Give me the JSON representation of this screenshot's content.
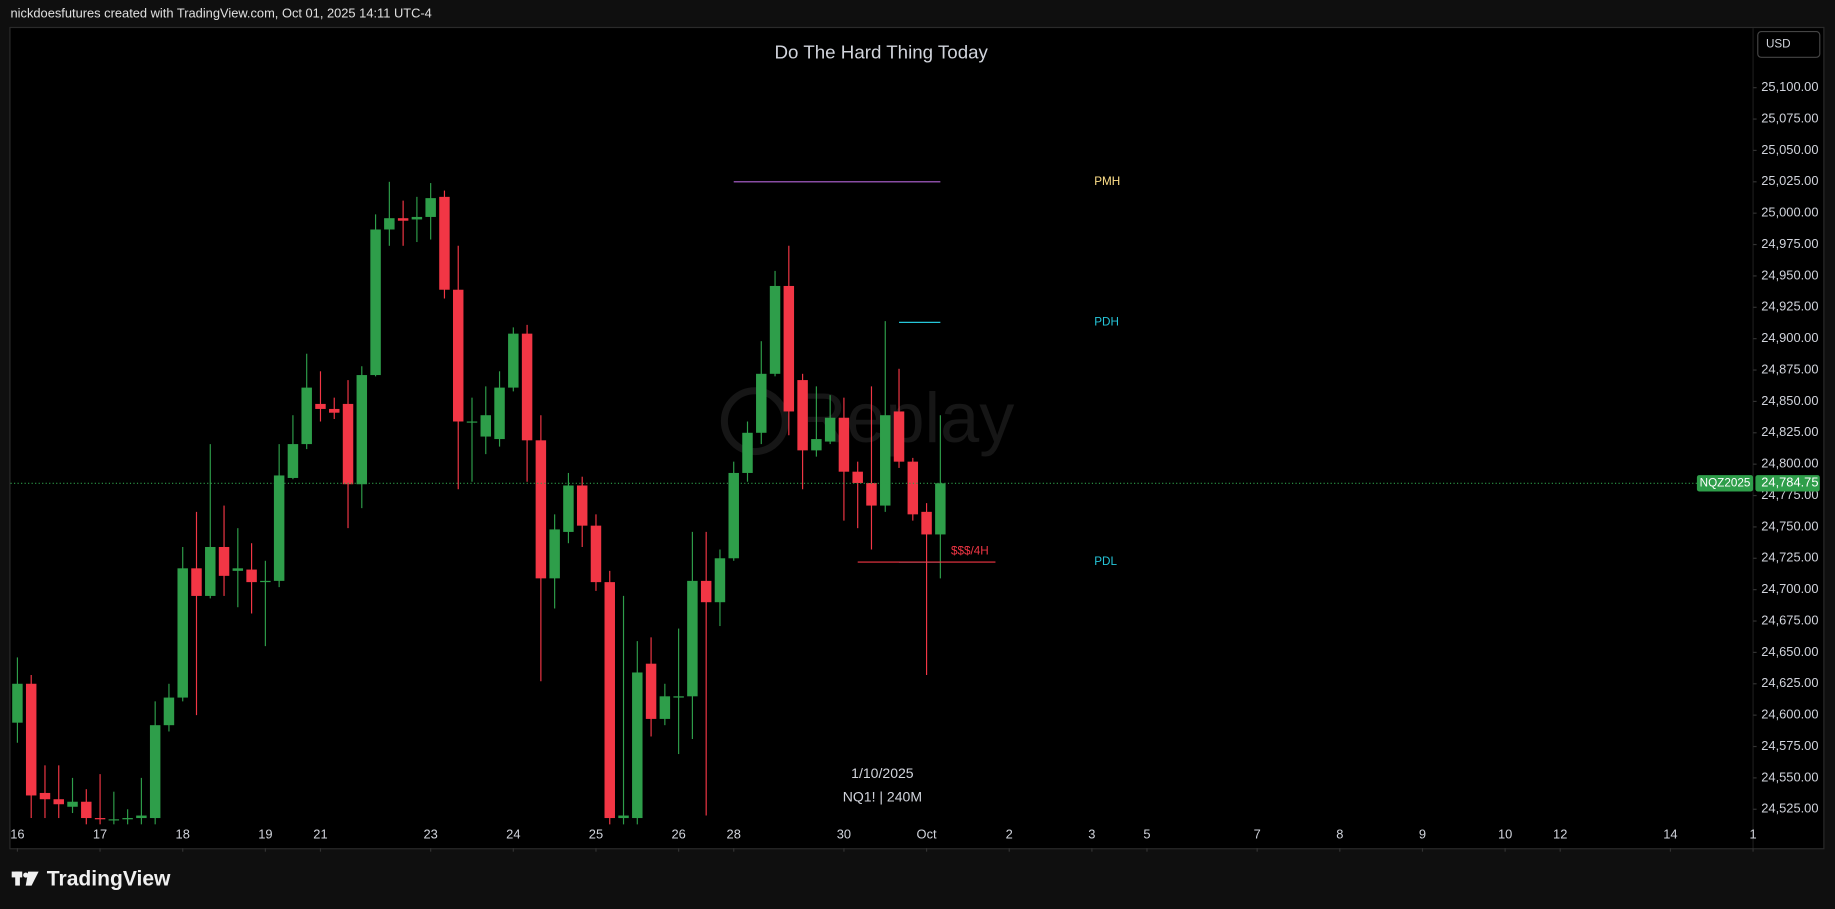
{
  "header": {
    "credit": "nickdoesfutures created with TradingView.com, Oct 01, 2025 14:11 UTC-4"
  },
  "footer": {
    "brand": "TradingView"
  },
  "chart_data": {
    "type": "candlestick",
    "title": "Do The Hard Thing Today",
    "currency": "USD",
    "symbol": "NQZ2025",
    "last_price_label": "24,784.75",
    "date_label": "1/10/2025",
    "interval_label": "NQ1! | 240M",
    "watermark": "Replay",
    "up_color": "#2e9e4a",
    "down_color": "#f23645",
    "grid": false,
    "open": [
      24594,
      24625,
      24538,
      24533,
      24527,
      24531,
      24518,
      24517,
      24517,
      24518,
      24518,
      24592,
      24614,
      24717,
      24695,
      24734,
      24715,
      24716,
      24706,
      24707,
      24789,
      24816,
      24848,
      24844,
      24848,
      24784,
      24871,
      24987,
      24996,
      24995,
      24997,
      25013,
      24939,
      24834,
      24822,
      24820,
      24861,
      24904,
      24819,
      24709,
      24746,
      24783,
      24751,
      24706,
      24518,
      24518,
      24641,
      24597,
      24614,
      24615,
      24707,
      24690,
      24725,
      24793,
      24825,
      24872,
      24942,
      24867,
      24811,
      24818,
      24837,
      24794,
      24785,
      24767,
      24842,
      24802,
      24762,
      24744
    ],
    "high": [
      24646,
      24632,
      24560,
      24560,
      24550,
      24541,
      24553,
      24539,
      24525,
      24550,
      24611,
      24625,
      24734,
      24762,
      24816,
      24767,
      24749,
      24737,
      24723,
      24816,
      24839,
      24888,
      24874,
      24853,
      24867,
      24878,
      24999,
      25025,
      25010,
      25013,
      25024,
      25018,
      24974,
      24853,
      24862,
      24874,
      24909,
      24911,
      24839,
      24760,
      24793,
      24790,
      24760,
      24715,
      24695,
      24659,
      24662,
      24625,
      24669,
      24746,
      24746,
      24732,
      24802,
      24834,
      24898,
      24954,
      24974,
      24872,
      24862,
      24855,
      24853,
      24802,
      24862,
      24914,
      24876,
      24805,
      24769,
      24839
    ],
    "low": [
      24578,
      24518,
      24518,
      24518,
      24522,
      24513,
      24513,
      24513,
      24513,
      24513,
      24513,
      24587,
      24611,
      24600,
      24693,
      24695,
      24686,
      24681,
      24655,
      24702,
      24788,
      24812,
      24834,
      24836,
      24749,
      24765,
      24870,
      24974,
      24974,
      24977,
      24979,
      24932,
      24780,
      24786,
      24808,
      24814,
      24858,
      24786,
      24627,
      24685,
      24737,
      24734,
      24699,
      24513,
      24513,
      24513,
      24583,
      24592,
      24569,
      24581,
      24520,
      24671,
      24723,
      24786,
      24816,
      24870,
      24823,
      24780,
      24806,
      24816,
      24755,
      24749,
      24732,
      24762,
      24797,
      24755,
      24632,
      24709
    ],
    "close": [
      24625,
      24536,
      24533,
      24529,
      24531,
      24518,
      24517,
      24517,
      24518,
      24520,
      24592,
      24614,
      24717,
      24695,
      24734,
      24711,
      24717,
      24706,
      24707,
      24791,
      24816,
      24861,
      24844,
      24841,
      24784,
      24871,
      24987,
      24996,
      24994,
      24997,
      25012,
      24939,
      24834,
      24834,
      24839,
      24861,
      24904,
      24819,
      24709,
      24748,
      24783,
      24751,
      24706,
      24518,
      24520,
      24634,
      24597,
      24615,
      24615,
      24707,
      24690,
      24725,
      24793,
      24825,
      24872,
      24942,
      24842,
      24811,
      24820,
      24837,
      24794,
      24785,
      24767,
      24839,
      24802,
      24760,
      24744,
      24784.75
    ],
    "xlim": [
      -0.5,
      126
    ],
    "xticks": [
      {
        "value": 0,
        "label": "16"
      },
      {
        "value": 6,
        "label": "17"
      },
      {
        "value": 12,
        "label": "18"
      },
      {
        "value": 18,
        "label": "19"
      },
      {
        "value": 22,
        "label": "21"
      },
      {
        "value": 30,
        "label": "23"
      },
      {
        "value": 36,
        "label": "24"
      },
      {
        "value": 42,
        "label": "25"
      },
      {
        "value": 48,
        "label": "26"
      },
      {
        "value": 52,
        "label": "28"
      },
      {
        "value": 60,
        "label": "30"
      },
      {
        "value": 66,
        "label": "Oct"
      },
      {
        "value": 72,
        "label": "2"
      },
      {
        "value": 78,
        "label": "3"
      },
      {
        "value": 82,
        "label": "5"
      },
      {
        "value": 90,
        "label": "7"
      },
      {
        "value": 96,
        "label": "8"
      },
      {
        "value": 102,
        "label": "9"
      },
      {
        "value": 108,
        "label": "10"
      },
      {
        "value": 112,
        "label": "12"
      },
      {
        "value": 120,
        "label": "14"
      },
      {
        "value": 126,
        "label": "1"
      }
    ],
    "ylim": [
      24494,
      25147.5
    ],
    "yticks": [
      {
        "value": 24525,
        "label": "24,525.00"
      },
      {
        "value": 24550,
        "label": "24,550.00"
      },
      {
        "value": 24575,
        "label": "24,575.00"
      },
      {
        "value": 24600,
        "label": "24,600.00"
      },
      {
        "value": 24625,
        "label": "24,625.00"
      },
      {
        "value": 24650,
        "label": "24,650.00"
      },
      {
        "value": 24675,
        "label": "24,675.00"
      },
      {
        "value": 24700,
        "label": "24,700.00"
      },
      {
        "value": 24725,
        "label": "24,725.00"
      },
      {
        "value": 24750,
        "label": "24,750.00"
      },
      {
        "value": 24775,
        "label": "24,775.00"
      },
      {
        "value": 24800,
        "label": "24,800.00"
      },
      {
        "value": 24825,
        "label": "24,825.00"
      },
      {
        "value": 24850,
        "label": "24,850.00"
      },
      {
        "value": 24875,
        "label": "24,875.00"
      },
      {
        "value": 24900,
        "label": "24,900.00"
      },
      {
        "value": 24925,
        "label": "24,925.00"
      },
      {
        "value": 24950,
        "label": "24,950.00"
      },
      {
        "value": 24975,
        "label": "24,975.00"
      },
      {
        "value": 25000,
        "label": "25,000.00"
      },
      {
        "value": 25025,
        "label": "25,025.00"
      },
      {
        "value": 25050,
        "label": "25,050.00"
      },
      {
        "value": 25075,
        "label": "25,075.00"
      },
      {
        "value": 25100,
        "label": "25,100.00"
      }
    ],
    "levels": [
      {
        "name": "PMH",
        "value": 25025,
        "x0": 52,
        "x1": 67,
        "color": "#b565d9",
        "label_color": "#ffe08a"
      },
      {
        "name": "PDH",
        "value": 24913,
        "x0": 64,
        "x1": 67,
        "color": "#26c6da",
        "label_color": "#26c6da"
      },
      {
        "name": "PDL",
        "value": 24722,
        "x0": 64,
        "x1": 67,
        "color": "#26c6da",
        "label_color": "#26c6da"
      },
      {
        "name": "$$$/4H",
        "value": 24722,
        "x0": 61,
        "x1": 71,
        "color": "#f23645",
        "label_color": "#f23645"
      }
    ]
  }
}
